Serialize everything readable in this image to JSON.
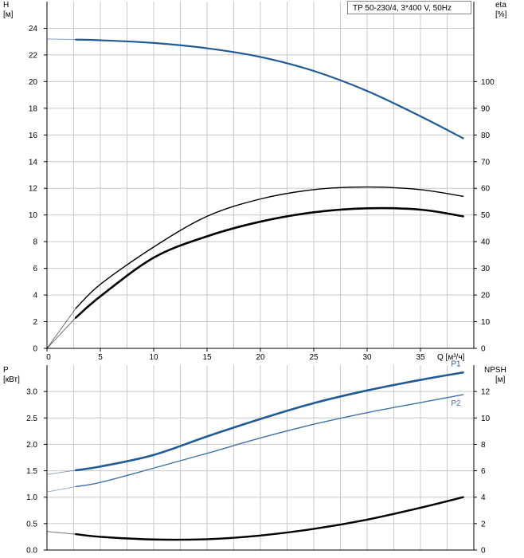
{
  "colors": {
    "blue": "#1f5a96",
    "blue_light": "#3f73aa",
    "black": "#000000",
    "grid": "#c8c8c8",
    "axis": "#000000"
  },
  "chart_data": [
    {
      "type": "line",
      "title": "TP 50-230/4, 3*400 V, 50Hz",
      "xlabel": "Q [м³/ч]",
      "ylabel_left": "H",
      "ylabel_left_unit": "[м]",
      "ylabel_right": "eta",
      "ylabel_right_unit": "[%]",
      "xlim": [
        0,
        40
      ],
      "ylim_left": [
        0,
        26
      ],
      "ylim_right": [
        0,
        130
      ],
      "x_ticks": [
        "0",
        "5",
        "10",
        "15",
        "20",
        "25",
        "30",
        "35"
      ],
      "x_tick_values": [
        0,
        5,
        10,
        15,
        20,
        25,
        30,
        35
      ],
      "y_ticks_left": [
        "0",
        "2",
        "4",
        "6",
        "8",
        "10",
        "12",
        "14",
        "16",
        "18",
        "20",
        "22",
        "24"
      ],
      "y_tick_values_left": [
        0,
        2,
        4,
        6,
        8,
        10,
        12,
        14,
        16,
        18,
        20,
        22,
        24
      ],
      "y_ticks_right": [
        "0",
        "10",
        "20",
        "30",
        "40",
        "50",
        "60",
        "70",
        "80",
        "90",
        "100"
      ],
      "y_tick_values_right": [
        0,
        10,
        20,
        30,
        40,
        50,
        60,
        70,
        80,
        90,
        100
      ],
      "grid": true,
      "series": [
        {
          "key": "H",
          "axis": "left",
          "color": "#1f5a96",
          "extension": {
            "x": [
              0,
              2.7
            ],
            "y": [
              23.2,
              23.15
            ]
          },
          "x": [
            2.7,
            5,
            10,
            15,
            20,
            25,
            30,
            35,
            39
          ],
          "y": [
            23.15,
            23.1,
            22.9,
            22.5,
            21.85,
            20.8,
            19.3,
            17.4,
            15.75
          ]
        },
        {
          "key": "eta_total",
          "axis": "right",
          "color": "#000000",
          "extension": {
            "x": [
              0,
              2.7
            ],
            "y": [
              0,
              15
            ]
          },
          "x": [
            2.7,
            5,
            10,
            15,
            20,
            25,
            30,
            35,
            39
          ],
          "y": [
            15,
            24,
            38,
            49.5,
            56,
            59.5,
            60.5,
            59.5,
            57
          ]
        },
        {
          "key": "eta_pump",
          "axis": "right",
          "color": "#000000",
          "extension": {
            "x": [
              0,
              2.7
            ],
            "y": [
              0,
              11.5
            ]
          },
          "x": [
            2.7,
            5,
            10,
            15,
            20,
            25,
            30,
            35,
            39
          ],
          "y": [
            11.5,
            19.5,
            34,
            42,
            47.5,
            51,
            52.5,
            52,
            49.5
          ]
        }
      ]
    },
    {
      "type": "line",
      "ylabel_left": "P",
      "ylabel_left_unit": "[кВт]",
      "ylabel_right": "NPSH",
      "ylabel_right_unit": "[м]",
      "xlim": [
        0,
        40
      ],
      "ylim_left": [
        0,
        3.5
      ],
      "ylim_right": [
        0,
        14
      ],
      "y_ticks_left": [
        "0.0",
        "0.5",
        "1.0",
        "1.5",
        "2.0",
        "2.5",
        "3.0"
      ],
      "y_tick_values_left": [
        0,
        0.5,
        1.0,
        1.5,
        2.0,
        2.5,
        3.0
      ],
      "y_ticks_right": [
        "0",
        "2",
        "4",
        "6",
        "8",
        "10",
        "12"
      ],
      "y_tick_values_right": [
        0,
        2,
        4,
        6,
        8,
        10,
        12
      ],
      "grid": true,
      "series": [
        {
          "name": "P1",
          "axis": "left",
          "color": "#1f5a96",
          "extension": {
            "x": [
              0,
              2.7
            ],
            "y": [
              1.43,
              1.51
            ]
          },
          "x": [
            2.7,
            5,
            10,
            15,
            20,
            25,
            30,
            35,
            39
          ],
          "y": [
            1.51,
            1.58,
            1.8,
            2.15,
            2.48,
            2.78,
            3.02,
            3.22,
            3.36
          ]
        },
        {
          "name": "P2",
          "axis": "left",
          "color": "#3f73aa",
          "extension": {
            "x": [
              0,
              2.7
            ],
            "y": [
              1.1,
              1.2
            ]
          },
          "x": [
            2.7,
            5,
            10,
            15,
            20,
            25,
            30,
            35,
            39
          ],
          "y": [
            1.2,
            1.28,
            1.55,
            1.83,
            2.12,
            2.38,
            2.6,
            2.79,
            2.94
          ]
        },
        {
          "key": "NPSH",
          "axis": "right",
          "color": "#000000",
          "extension": {
            "x": [
              0,
              2.7
            ],
            "y": [
              1.4,
              1.2
            ]
          },
          "x": [
            2.7,
            5,
            10,
            15,
            20,
            25,
            30,
            35,
            39
          ],
          "y": [
            1.2,
            1.0,
            0.8,
            0.82,
            1.1,
            1.6,
            2.3,
            3.2,
            4.0
          ]
        }
      ]
    }
  ]
}
